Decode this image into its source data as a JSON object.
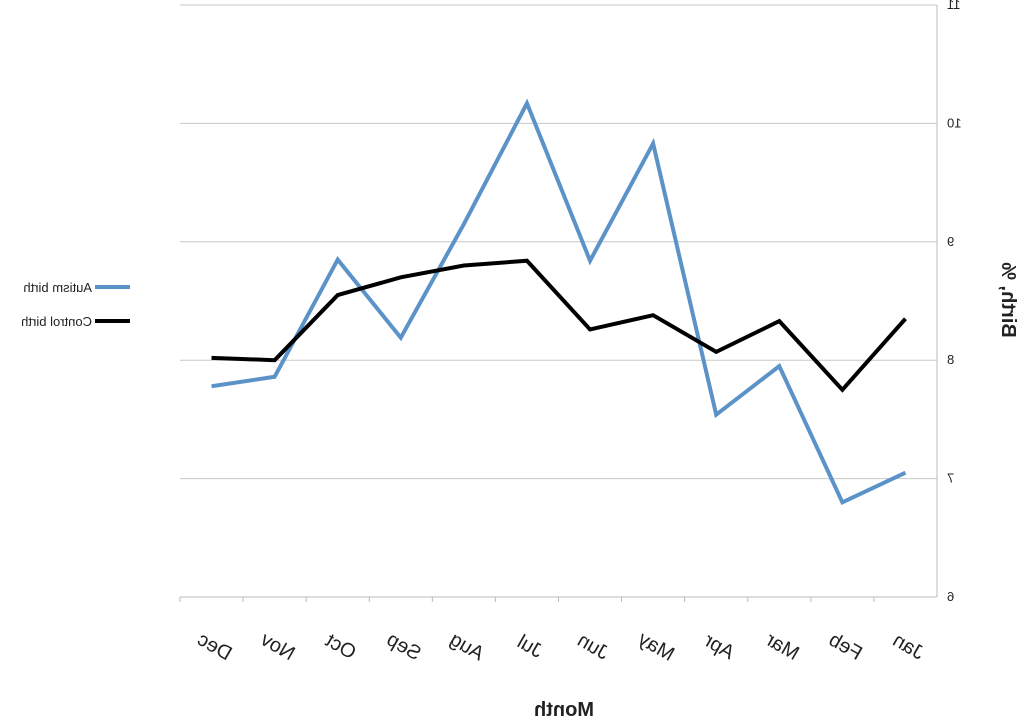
{
  "chart_data": {
    "type": "line",
    "x_label": "Month",
    "y_label": "Birth, %",
    "categories": [
      "Jan",
      "Feb",
      "Mar",
      "Apr",
      "May",
      "Jun",
      "Jul",
      "Aug",
      "Sep",
      "Oct",
      "Nov",
      "Dec"
    ],
    "series": [
      {
        "name": "Autism birth",
        "color": "#5b93c8",
        "values": [
          7.05,
          6.8,
          7.95,
          7.54,
          9.83,
          8.84,
          10.17,
          9.15,
          8.19,
          8.85,
          7.86,
          7.78
        ]
      },
      {
        "name": "Control birth",
        "color": "#000000",
        "values": [
          8.35,
          7.75,
          8.33,
          8.07,
          8.38,
          8.26,
          8.84,
          8.8,
          8.7,
          8.55,
          8.0,
          8.02
        ]
      }
    ],
    "ylim": [
      6,
      11
    ],
    "yticks": [
      6,
      7,
      8,
      9,
      10,
      11
    ],
    "grid": true,
    "legend": "right",
    "mirrored": true
  }
}
